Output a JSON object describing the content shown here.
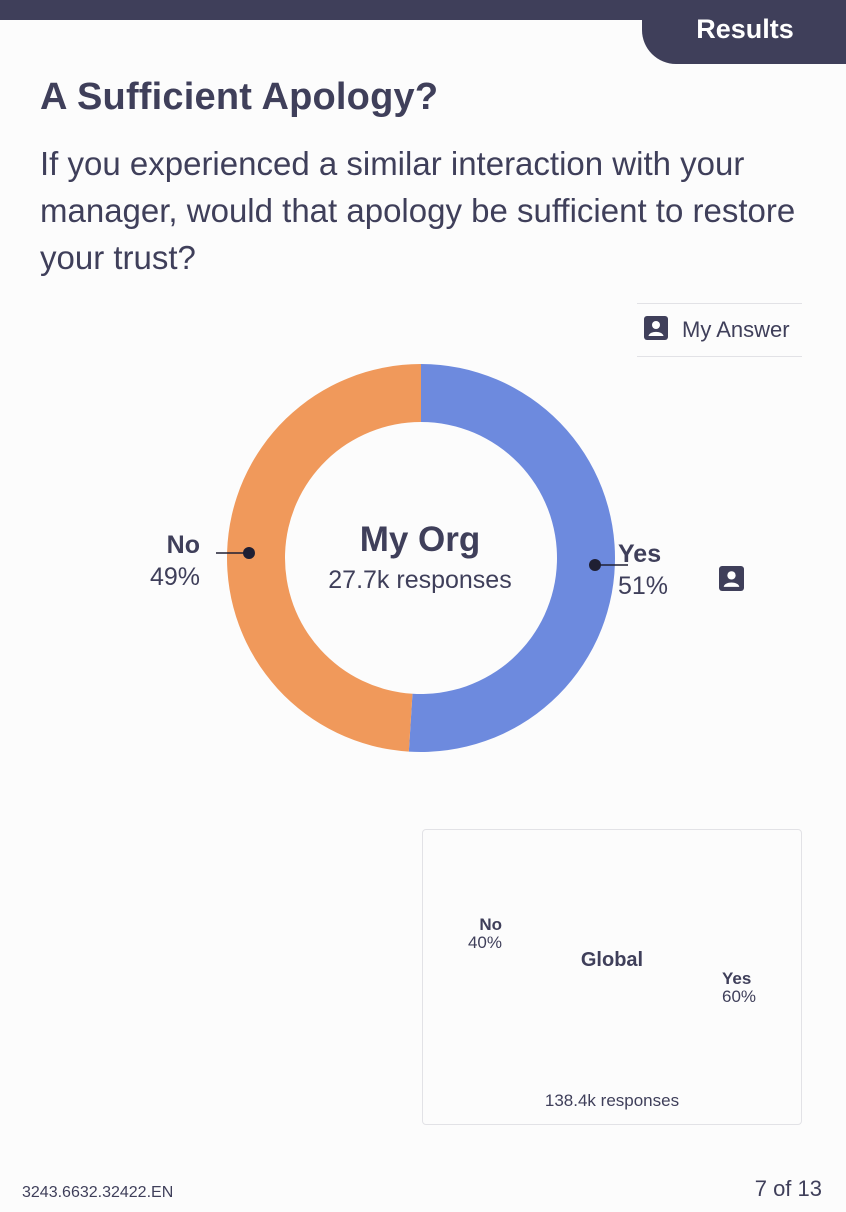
{
  "header": {
    "tab_label": "Results"
  },
  "question": {
    "title": "A Sufficient Apology?",
    "text": "If you experienced a similar interaction with your manager, would that apology be sufficient to restore your trust?"
  },
  "legend": {
    "label": "My Answer",
    "icon": "person-icon"
  },
  "colors": {
    "header_bg": "#3f3f5a",
    "yes": "#6d8ade",
    "no": "#f0995b",
    "yes_light": "#b5c2ee",
    "no_light": "#f6cdaf"
  },
  "chart_data": [
    {
      "type": "pie",
      "title": "My Org",
      "subtitle": "27.7k responses",
      "categories": [
        "Yes",
        "No"
      ],
      "values": [
        51,
        49
      ],
      "value_labels": [
        "51%",
        "49%"
      ],
      "my_answer": "Yes"
    },
    {
      "type": "pie",
      "title": "Global",
      "subtitle": "138.4k responses",
      "categories": [
        "Yes",
        "No"
      ],
      "values": [
        60,
        40
      ],
      "value_labels": [
        "60%",
        "40%"
      ]
    }
  ],
  "footer": {
    "code": "3243.6632.32422.EN",
    "page": "7 of 13"
  }
}
